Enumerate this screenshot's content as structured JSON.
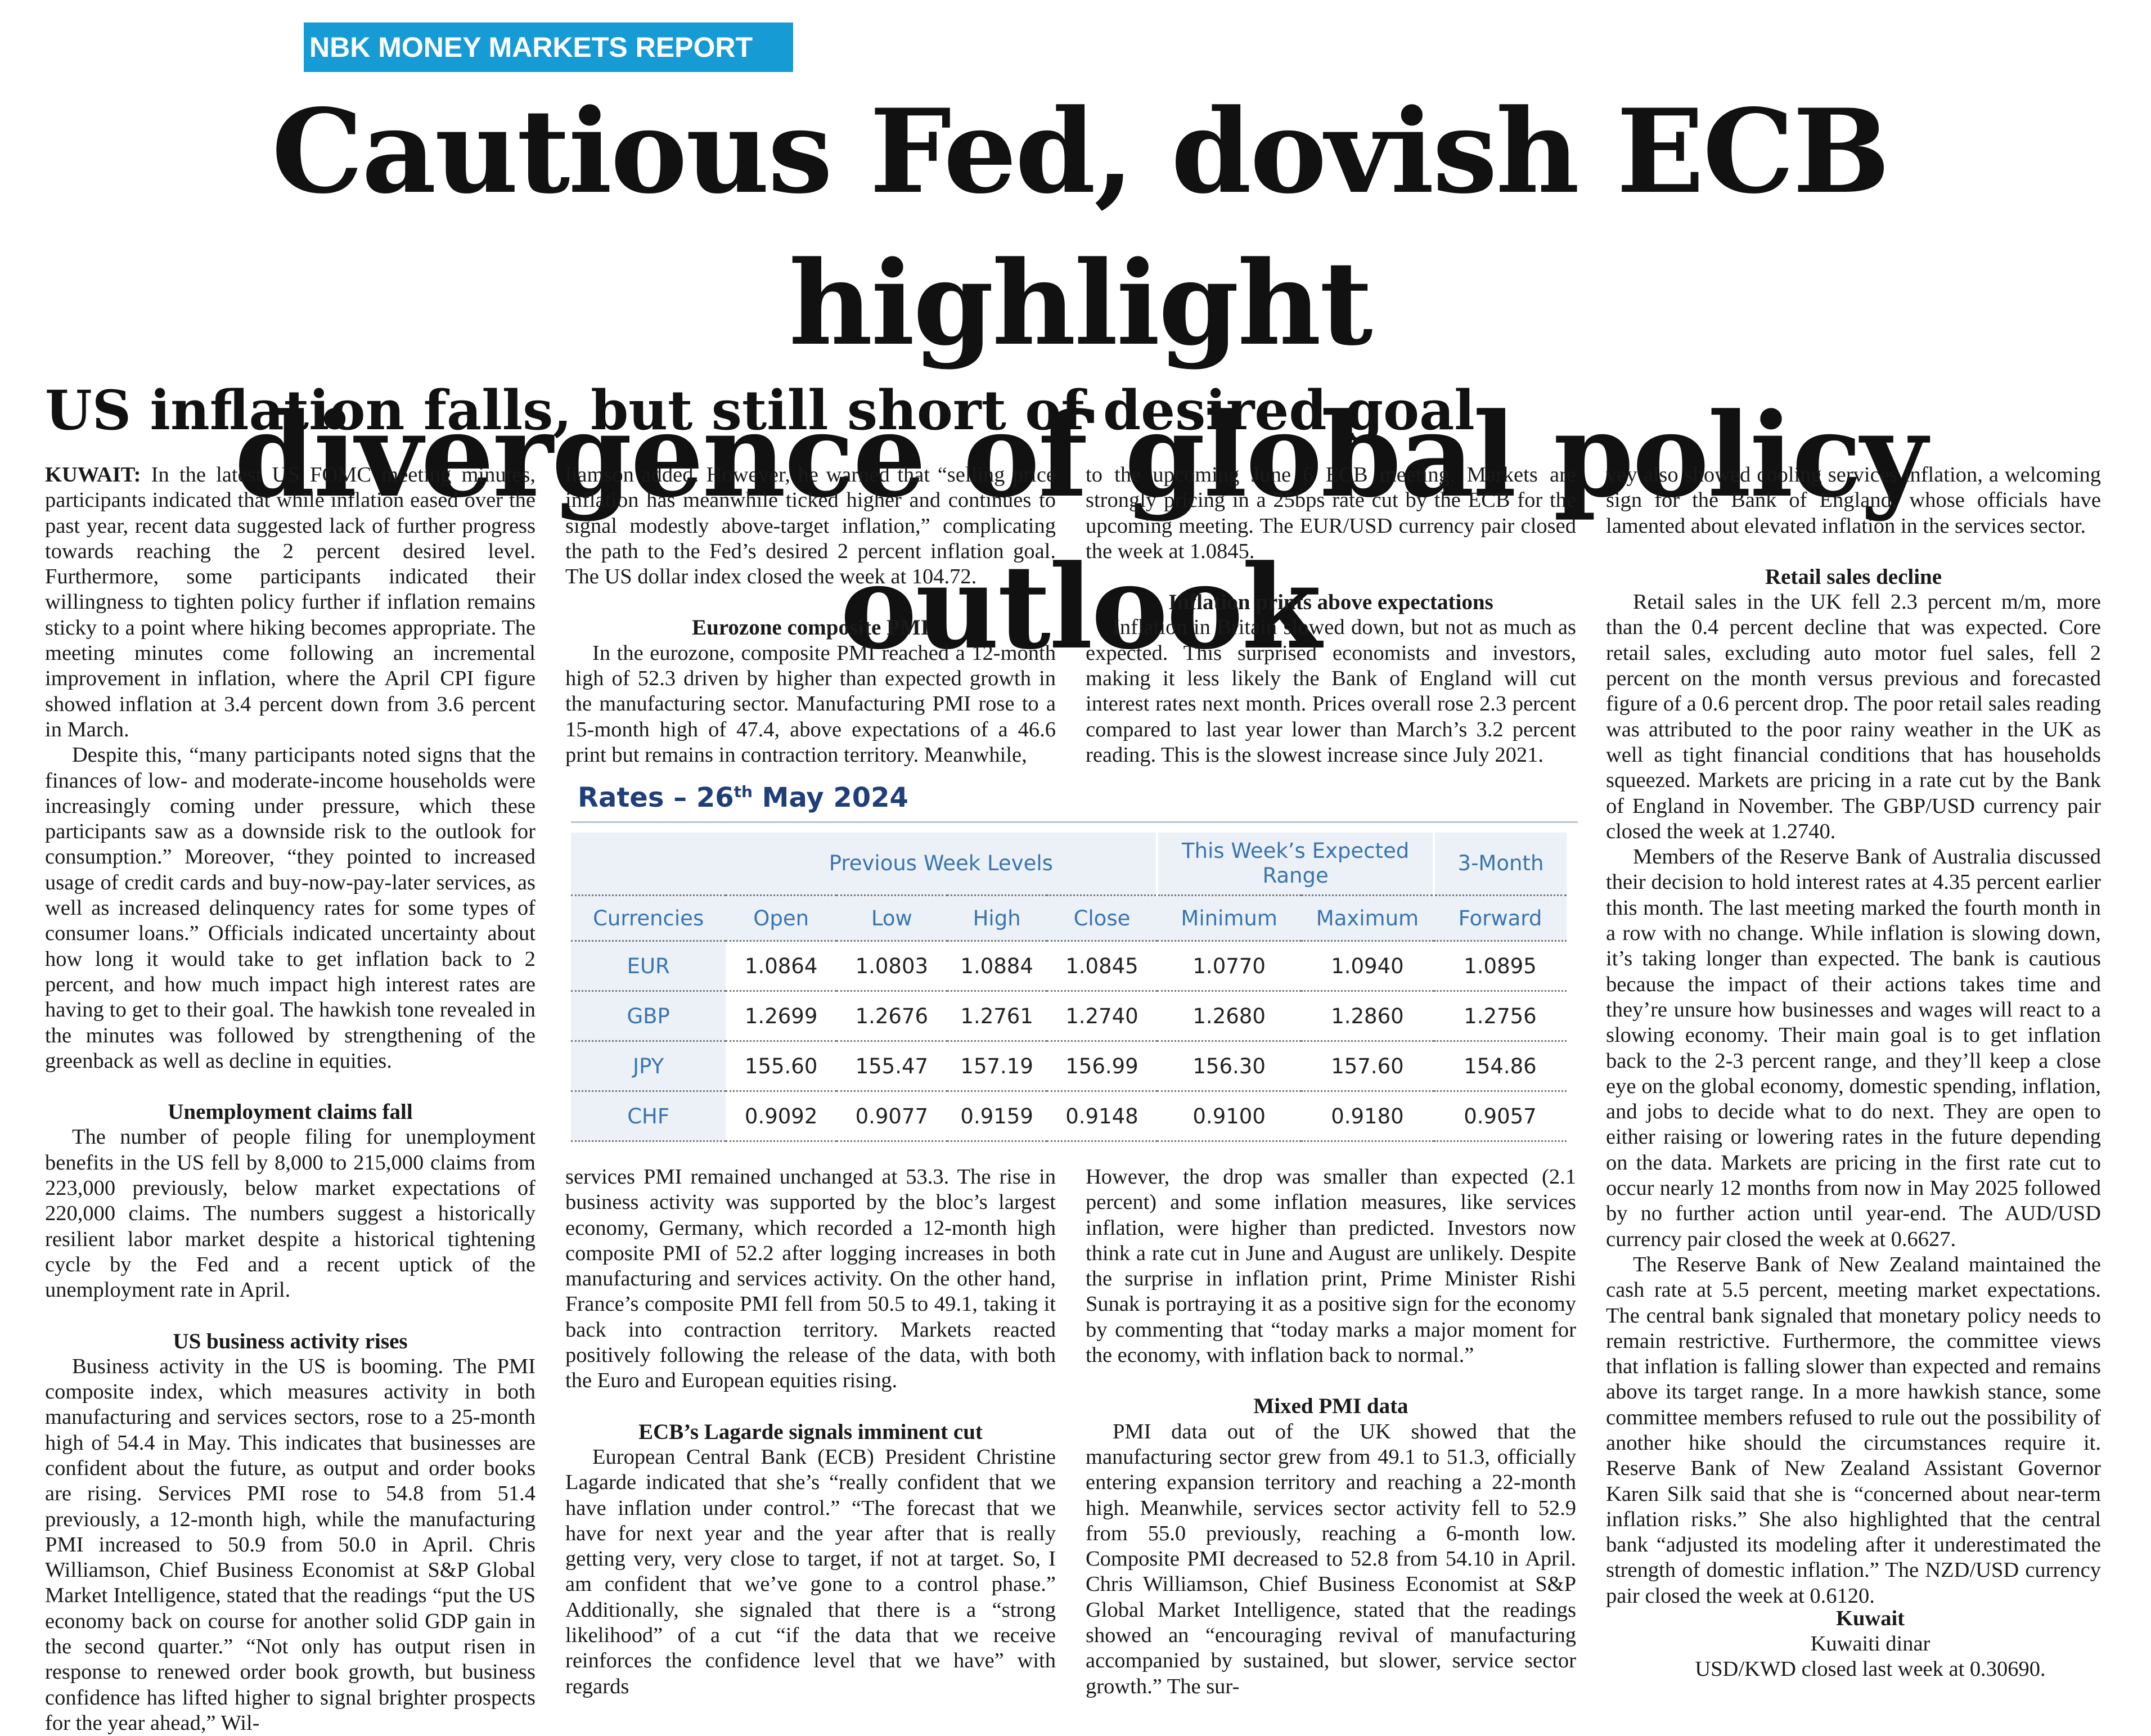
{
  "section_tag": "NBK MONEY MARKETS REPORT",
  "headline_line1": "Cautious Fed, dovish ECB highlight",
  "headline_line2": "divergence of global policy outlook",
  "subhead": "US inflation falls, but still short of desired goal",
  "col1": {
    "dateline": "KUWAIT:",
    "p1": "In the latest US FOMC meeting minutes, participants indicated that while inflation eased over the past year, recent data suggested lack of further progress towards reaching the 2 percent desired level. Furthermore, some participants indicated their willingness to tighten policy further if inflation remains sticky to a point where hiking becomes appropriate. The meeting minutes come following an incremental improvement in inflation, where the April CPI figure showed inflation at 3.4 percent down from 3.6 percent in March.",
    "p2": "Despite this, “many participants noted signs that the finances of low- and moderate-income households were increasingly coming under pressure, which these participants saw as a downside risk to the outlook for consumption.” Moreover, “they pointed to increased usage of credit cards and buy-now-pay-later services, as well as increased delinquency rates for some types of consumer loans.” Officials indicated uncertainty about how long it would take to get inflation back to 2 percent, and how much impact high interest rates are having to get to their goal. The hawkish tone revealed in the minutes was followed by strengthening of the greenback as well as decline in equities.",
    "h_unemp": "Unemployment claims fall",
    "p3": "The number of people filing for unemployment benefits in the US fell by 8,000 to 215,000 claims from 223,000 previously, below market expectations of 220,000 claims. The numbers suggest a historically resilient labor market despite a historical tightening cycle by the Fed and a recent uptick of the unemployment rate in April.",
    "h_us_business": "US business activity rises",
    "p4": "Business activity in the US is booming. The PMI composite index, which measures activity in both manufacturing and services sectors, rose to a 25-month high of 54.4 in May. This indicates that businesses are confident about the future, as output and order books are rising. Services PMI rose to 54.8 from 51.4 previously, a 12-month high, while the manufacturing PMI increased to 50.9 from 50.0 in April. Chris Williamson, Chief Business Economist at S&P Global Market Intelligence, stated that the readings “put the US economy back on course for another solid GDP gain in the second quarter.” “Not only has output risen in response to renewed order book growth, but business confidence has lifted higher to signal brighter prospects for the year ahead,” Wil-"
  },
  "col2_top": {
    "p1": "liamson added. However, he warned that “selling price inflation has meanwhile ticked higher and continues to signal modestly above-target inflation,” complicating the path to the Fed’s desired 2 percent inflation goal. The US dollar index closed the week at 104.72.",
    "h_euro_pmi": "Eurozone composite PMI",
    "p2": "In the eurozone, composite PMI reached a 12-month high of 52.3 driven by higher than expected growth in the manufacturing sector. Manufacturing PMI rose to a 15-month high of 47.4, above expectations of a 46.6 print but remains in contraction territory. Meanwhile,"
  },
  "col3_top": {
    "p1": "to the upcoming June 6 ECB meeting. Markets are strongly pricing in a 25bps rate cut by the ECB for the upcoming meeting. The EUR/USD currency pair closed the week at 1.0845.",
    "h_inflation": "Inflation prints above expectations",
    "p2": "Inflation in Britain slowed down, but not as much as expected. This surprised economists and investors, making it less likely the Bank of England will cut interest rates next month. Prices overall rose 2.3 percent compared to last year lower than March’s 3.2 percent reading. This is the slowest increase since July 2021."
  },
  "col2_bottom": {
    "p1": "services PMI remained unchanged at 53.3. The rise in business activity was supported by the bloc’s largest economy, Germany, which recorded a 12-month high composite PMI of 52.2 after logging increases in both manufacturing and services activity. On the other hand, France’s composite PMI fell from 50.5 to 49.1, taking it back into contraction territory. Markets reacted positively following the release of the data, with both the Euro and European equities rising.",
    "h_lagarde": "ECB’s Lagarde signals imminent cut",
    "p2": "European Central Bank (ECB) President Christine Lagarde indicated that she’s “really confident that we have inflation under control.” “The forecast that we have for next year and the year after that is really getting very, very close to target, if not at target. So, I am confident that we’ve gone to a control phase.” Additionally, she signaled that there is a “strong likelihood” of a cut “if the data that we receive reinforces the confidence level that we have” with regards"
  },
  "col3_bottom": {
    "p1": "However, the drop was smaller than expected (2.1 percent) and some inflation measures, like services inflation, were higher than predicted. Investors now think a rate cut in June and August are unlikely. Despite the surprise in inflation print, Prime Minister Rishi Sunak is portraying it as a positive sign for the economy by commenting that “today marks a major moment for the economy, with inflation back to normal.”",
    "h_mixed_pmi": "Mixed PMI data",
    "p2": "PMI data out of the UK showed that the manufacturing sector grew from 49.1 to 51.3, officially entering expansion territory and reaching a 22-month high. Meanwhile, services sector activity fell to 52.9 from 55.0 previously, reaching a 6-month low. Composite PMI decreased to 52.8 from 54.10 in April. Chris Williamson, Chief Business Economist at S&P Global Market Intelligence, stated that the readings showed an “encouraging revival of manufacturing accompanied by sustained, but slower, service sector growth.” The sur-"
  },
  "col4": {
    "p1": "vey also showed cooling services inflation, a welcoming sign for the Bank of England, whose officials have lamented about elevated inflation in the services sector.",
    "h_retail": "Retail sales decline",
    "p2": "Retail sales in the UK fell 2.3 percent m/m, more than the 0.4 percent decline that was expected. Core retail sales, excluding auto motor fuel sales, fell 2 percent on the month versus previous and forecasted figure of a 0.6 percent drop. The poor retail sales reading was attributed to the poor rainy weather in the UK as well as tight financial conditions that has households squeezed. Markets are pricing in a rate cut by the Bank of England in November. The GBP/USD currency pair closed the week at 1.2740.",
    "p3": "Members of the Reserve Bank of Australia discussed their decision to hold interest rates at 4.35 percent earlier this month. The last meeting marked the fourth month in a row with no change. While inflation is slowing down, it’s taking longer than expected. The bank is cautious because the impact of their actions takes time and they’re unsure how businesses and wages will react to a slowing economy. Their main goal is to get inflation back to the 2-3 percent range, and they’ll keep a close eye on the global economy, domestic spending, inflation, and jobs to decide what to do next. They are open to either raising or lowering rates in the future depending on the data. Markets are pricing in the first rate cut to occur nearly 12 months from now in May 2025 followed by no further action until year-end. The AUD/USD currency pair closed the week at 0.6627.",
    "p4": "The Reserve Bank of New Zealand maintained the cash rate at 5.5 percent, meeting market expectations. The central bank signaled that monetary policy needs to remain restrictive. Furthermore, the committee views that inflation is falling slower than expected and remains above its target range. In a more hawkish stance, some committee members refused to rule out the possibility of another hike should the circumstances require it. Reserve Bank of New Zealand Assistant Governor Karen Silk said that she is “concerned about near-term inflation risks.” She also highlighted that the central bank “adjusted its modeling after it underestimated the strength of domestic inflation.” The NZD/USD currency pair closed the week at 0.6120."
  },
  "kuwait_box": {
    "title": "Kuwait",
    "line1": "Kuwaiti dinar",
    "line2": "USD/KWD closed last week at 0.30690."
  },
  "rates_table": {
    "title_prefix": "Rates – 26",
    "title_sup": "th",
    "title_suffix": " May 2024",
    "group_prev": "Previous Week Levels",
    "group_expected": "This Week’s Expected Range",
    "group_forward": "3-Month",
    "headers": [
      "Currencies",
      "Open",
      "Low",
      "High",
      "Close",
      "Minimum",
      "Maximum",
      "Forward"
    ],
    "rows": [
      [
        "EUR",
        "1.0864",
        "1.0803",
        "1.0884",
        "1.0845",
        "1.0770",
        "1.0940",
        "1.0895"
      ],
      [
        "GBP",
        "1.2699",
        "1.2676",
        "1.2761",
        "1.2740",
        "1.2680",
        "1.2860",
        "1.2756"
      ],
      [
        "JPY",
        "155.60",
        "155.47",
        "157.19",
        "156.99",
        "156.30",
        "157.60",
        "154.86"
      ],
      [
        "CHF",
        "0.9092",
        "0.9077",
        "0.9159",
        "0.9148",
        "0.9100",
        "0.9180",
        "0.9057"
      ]
    ]
  }
}
